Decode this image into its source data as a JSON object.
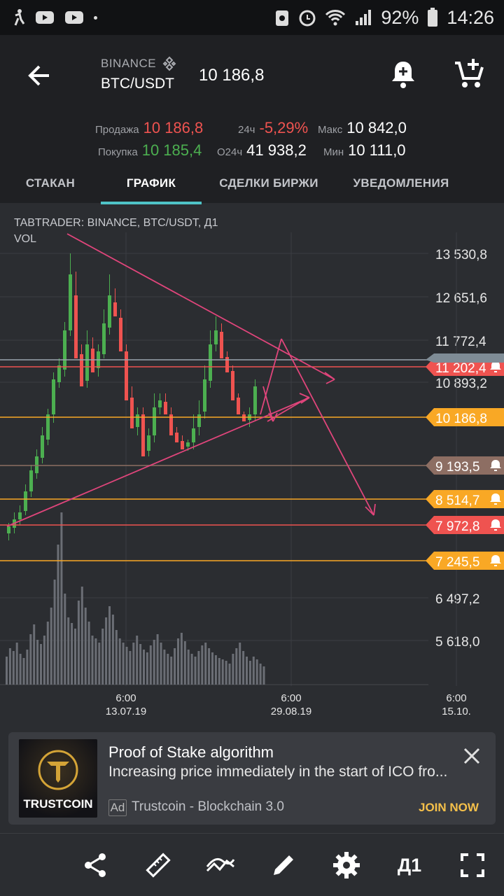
{
  "status_bar": {
    "battery": "92%",
    "time": "14:26"
  },
  "header": {
    "exchange": "BINANCE",
    "pair": "BTC/USDT",
    "last_price": "10 186,8"
  },
  "stats": {
    "sell_label": "Продажа",
    "sell_value": "10 186,8",
    "buy_label": "Покупка",
    "buy_value": "10 185,4",
    "change_label": "24ч",
    "change_value": "-5,29%",
    "volume_label": "О24ч",
    "volume_value": "41 938,2",
    "max_label": "Макс",
    "max_value": "10 842,0",
    "min_label": "Мин",
    "min_value": "10 111,0"
  },
  "tabs": [
    "СТАКАН",
    "ГРАФИК",
    "СДЕЛКИ БИРЖИ",
    "УВЕДОМЛЕНИЯ"
  ],
  "chart": {
    "title": "TABTRADER: BINANCE, BTC/USDT, Д1",
    "vol_label": "VOL"
  },
  "chart_data": {
    "type": "candlestick",
    "y_axis_ticks": [
      "13 530,8",
      "12 651,6",
      "11 772,4",
      "10 893,2",
      "6 497,2",
      "5 618,0"
    ],
    "x_axis_ticks": [
      {
        "time": "6:00",
        "date": "13.07.19"
      },
      {
        "time": "6:00",
        "date": "29.08.19"
      },
      {
        "time": "6:00",
        "date": "15.10."
      }
    ],
    "price_lines": [
      {
        "label": "11 202,4",
        "color": "#ef5350",
        "alert": true
      },
      {
        "label": "10 186,8",
        "color": "#f9a825",
        "alert": false
      },
      {
        "label": "9 193,5",
        "color": "#8d6e63",
        "alert": true
      },
      {
        "label": "8 514,7",
        "color": "#f9a825",
        "alert": true
      },
      {
        "label": "7 972,8",
        "color": "#ef5350",
        "alert": true
      },
      {
        "label": "7 245,5",
        "color": "#f9a825",
        "alert": true
      }
    ],
    "current_price_tag": "10 186,8",
    "colors": {
      "up": "#4caf50",
      "down": "#ef5350",
      "trendline": "#e0457b",
      "volume": "#6b6e75"
    }
  },
  "ad": {
    "title": "Proof of Stake algorithm",
    "description": "Increasing price immediately in the start of ICO fro...",
    "badge": "Ad",
    "sponsor": "Trustcoin - Blockchain 3.0",
    "cta": "JOIN NOW",
    "logo_text": "TRUSTCOIN"
  },
  "toolbar": {
    "timeframe": "Д1"
  }
}
